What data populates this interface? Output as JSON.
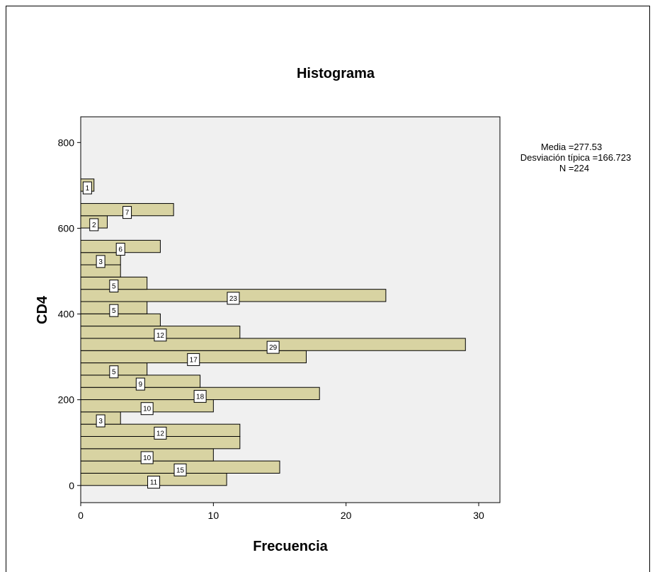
{
  "chart_data": {
    "type": "bar",
    "orientation": "horizontal",
    "title": "Histograma",
    "xlabel": "Frecuencia",
    "ylabel": "CD4",
    "xlim": [
      0,
      31.6
    ],
    "ylim": [
      -40,
      860
    ],
    "x_ticks": [
      "0",
      "10",
      "20",
      "30"
    ],
    "y_ticks": [
      "0",
      "200",
      "400",
      "600",
      "800"
    ],
    "x_tick_values": [
      0,
      10,
      20,
      30
    ],
    "y_tick_values": [
      0,
      200,
      400,
      600,
      800
    ],
    "bin_width": 28.6,
    "bins": [
      {
        "start": 0,
        "count": 11,
        "label": "11"
      },
      {
        "start": 28.6,
        "count": 15,
        "label": "15"
      },
      {
        "start": 57.2,
        "count": 10,
        "label": "10"
      },
      {
        "start": 85.8,
        "count": 12,
        "label": ""
      },
      {
        "start": 114.4,
        "count": 12,
        "label": "12"
      },
      {
        "start": 143.0,
        "count": 3,
        "label": "3"
      },
      {
        "start": 171.6,
        "count": 10,
        "label": "10"
      },
      {
        "start": 200.2,
        "count": 18,
        "label": "18"
      },
      {
        "start": 228.8,
        "count": 9,
        "label": "9"
      },
      {
        "start": 257.4,
        "count": 5,
        "label": "5"
      },
      {
        "start": 286.0,
        "count": 17,
        "label": "17"
      },
      {
        "start": 314.6,
        "count": 29,
        "label": "29"
      },
      {
        "start": 343.2,
        "count": 12,
        "label": "12"
      },
      {
        "start": 371.8,
        "count": 6,
        "label": ""
      },
      {
        "start": 400.4,
        "count": 5,
        "label": "5"
      },
      {
        "start": 429.0,
        "count": 23,
        "label": "23"
      },
      {
        "start": 457.6,
        "count": 5,
        "label": "5"
      },
      {
        "start": 486.2,
        "count": 3,
        "label": ""
      },
      {
        "start": 514.8,
        "count": 3,
        "label": "3"
      },
      {
        "start": 543.4,
        "count": 6,
        "label": "6"
      },
      {
        "start": 572.0,
        "count": 0,
        "label": ""
      },
      {
        "start": 600.6,
        "count": 2,
        "label": "2"
      },
      {
        "start": 629.2,
        "count": 7,
        "label": "7"
      },
      {
        "start": 657.8,
        "count": 0,
        "label": ""
      },
      {
        "start": 686.4,
        "count": 1,
        "label": "1"
      }
    ],
    "stats": {
      "media": "Media =277.53",
      "desviacion": "Desviación típica =166.723",
      "n": "N =224"
    },
    "colors": {
      "bar_fill": "#d8d3a2",
      "plot_bg": "#f0f0f0",
      "stroke": "#000000",
      "label_bg": "#ffffff"
    },
    "grid": false
  }
}
